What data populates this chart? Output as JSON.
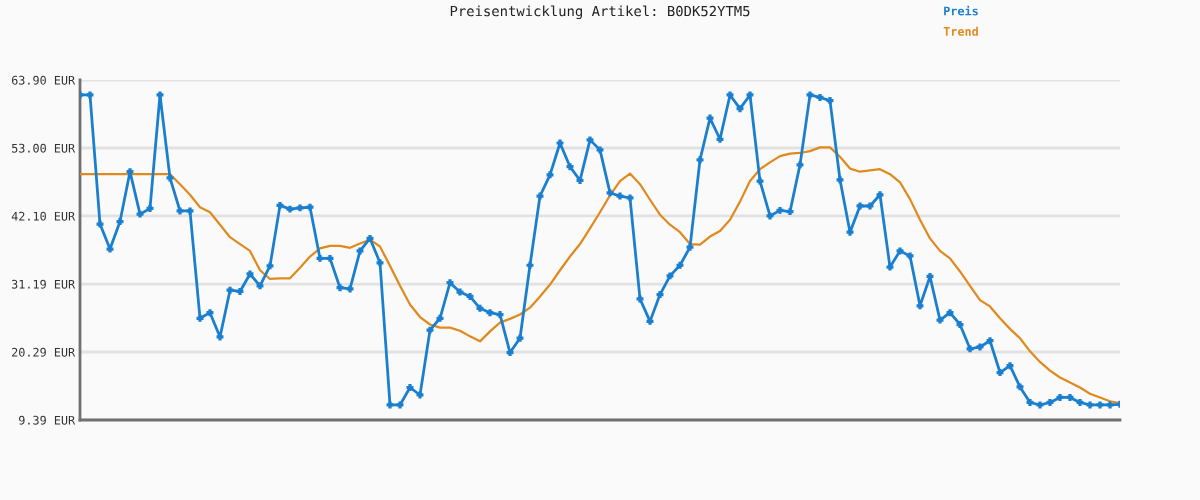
{
  "chart_data": {
    "type": "line",
    "title": "Preisentwicklung Artikel: B0DK52YTM5",
    "categories": [
      null,
      null,
      null,
      null,
      null,
      null,
      null,
      null,
      null,
      null,
      null,
      null,
      null,
      null,
      null,
      null,
      null,
      null,
      null,
      null,
      null,
      null,
      null,
      null,
      null,
      null,
      null,
      null,
      null,
      null,
      null,
      null,
      null,
      null,
      null,
      null,
      null,
      null,
      null,
      null,
      null,
      null,
      null,
      null,
      null,
      null,
      null,
      null,
      null,
      null,
      null,
      null,
      null,
      null,
      null,
      null,
      null,
      null,
      null,
      null,
      null,
      null,
      null,
      null,
      null,
      null,
      null,
      null,
      null,
      null,
      null,
      null,
      null,
      null,
      null,
      null,
      null,
      null,
      null,
      null,
      null,
      null,
      null,
      null,
      null,
      null,
      null,
      null,
      null,
      null,
      null,
      null,
      null,
      null,
      null,
      null,
      null,
      null,
      null,
      null,
      null,
      null,
      null,
      null,
      null
    ],
    "series": [
      {
        "name": "Preis",
        "color": "#1a7fcf",
        "marker": "cross",
        "values": [
          61.5,
          61.5,
          40.8,
          36.8,
          41.2,
          49.2,
          42.4,
          43.3,
          61.5,
          48.2,
          42.9,
          42.9,
          25.7,
          26.6,
          22.7,
          30.2,
          30.0,
          32.8,
          30.9,
          34.1,
          43.8,
          43.2,
          43.4,
          43.5,
          35.3,
          35.3,
          30.6,
          30.4,
          36.5,
          38.5,
          34.6,
          11.8,
          11.8,
          14.6,
          13.4,
          23.8,
          25.7,
          31.4,
          29.9,
          29.2,
          27.3,
          26.6,
          26.3,
          20.2,
          22.5,
          34.2,
          45.3,
          48.7,
          53.8,
          50.0,
          47.8,
          54.3,
          52.7,
          45.8,
          45.3,
          45.0,
          28.8,
          25.2,
          29.5,
          32.5,
          34.2,
          37.1,
          51.1,
          57.8,
          54.4,
          61.5,
          59.3,
          61.5,
          47.7,
          42.1,
          43.0,
          42.8,
          50.3,
          61.5,
          61.1,
          60.6,
          47.9,
          39.5,
          43.7,
          43.7,
          45.5,
          33.9,
          36.5,
          35.7,
          27.7,
          32.4,
          25.4,
          26.6,
          24.7,
          20.8,
          21.1,
          22.1,
          17.0,
          18.1,
          14.7,
          12.2,
          11.8,
          12.2,
          13.0,
          13.0,
          12.2,
          11.8,
          11.8,
          11.8,
          11.9
        ]
      },
      {
        "name": "Trend",
        "color": "#e08a1e",
        "marker": "none",
        "values": [
          48.8,
          48.8,
          48.8,
          48.8,
          48.8,
          48.8,
          48.8,
          48.8,
          48.8,
          48.8,
          47.2,
          45.5,
          43.5,
          42.7,
          40.7,
          38.7,
          37.6,
          36.5,
          33.4,
          32.0,
          32.1,
          32.1,
          33.8,
          35.6,
          36.9,
          37.3,
          37.3,
          37.0,
          37.7,
          38.3,
          37.2,
          34.1,
          30.9,
          27.9,
          25.9,
          24.7,
          24.2,
          24.2,
          23.7,
          22.8,
          22.0,
          23.6,
          25.0,
          25.6,
          26.3,
          27.4,
          29.2,
          31.1,
          33.4,
          35.6,
          37.6,
          40.1,
          42.7,
          45.4,
          47.7,
          48.9,
          47.2,
          44.7,
          42.3,
          40.7,
          39.5,
          37.6,
          37.5,
          38.8,
          39.7,
          41.5,
          44.4,
          47.7,
          49.6,
          50.7,
          51.7,
          52.1,
          52.2,
          52.5,
          53.1,
          53.1,
          51.6,
          49.7,
          49.2,
          49.4,
          49.6,
          48.8,
          47.5,
          44.8,
          41.5,
          38.5,
          36.5,
          35.3,
          33.2,
          30.9,
          28.6,
          27.6,
          25.7,
          24.0,
          22.5,
          20.4,
          18.7,
          17.3,
          16.2,
          15.4,
          14.6,
          13.6,
          13.0,
          12.4,
          12.1
        ]
      }
    ],
    "ylim": [
      9.39,
      63.9
    ],
    "yticks": [
      {
        "value": 9.39,
        "label": "9.39 EUR"
      },
      {
        "value": 20.29,
        "label": "20.29 EUR"
      },
      {
        "value": 31.19,
        "label": "31.19 EUR"
      },
      {
        "value": 42.1,
        "label": "42.10 EUR"
      },
      {
        "value": 53.0,
        "label": "53.00 EUR"
      },
      {
        "value": 63.9,
        "label": "63.90 EUR"
      }
    ],
    "grid": "y",
    "legend": "top right",
    "tick_labels": "y",
    "line_style": "solid"
  }
}
